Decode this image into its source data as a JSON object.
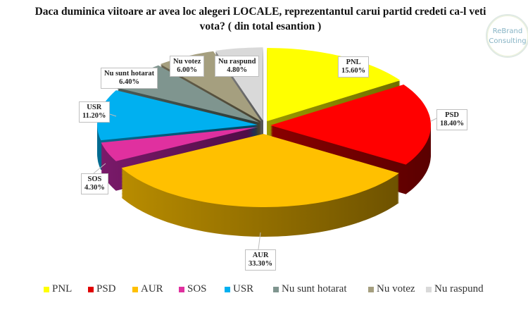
{
  "title": {
    "line1": "Daca duminica viitoare ar avea loc alegeri LOCALE, reprezentantul carui partid credeti ca-l veti",
    "line2": "vota? ( din total esantion )"
  },
  "logo": {
    "line1": "ReBrand",
    "line2": "Consulting"
  },
  "chart_data": {
    "type": "pie",
    "style": "3d-exploded",
    "title": "Daca duminica viitoare ar avea loc alegeri LOCALE, reprezentantul carui partid credeti ca-l veti vota? ( din total esantion )",
    "categories": [
      "PNL",
      "PSD",
      "AUR",
      "SOS",
      "USR",
      "Nu sunt hotarat",
      "Nu votez",
      "Nu raspund"
    ],
    "values": [
      15.6,
      18.4,
      33.3,
      4.3,
      11.2,
      6.4,
      6.0,
      4.8
    ],
    "value_labels": [
      "15.60%",
      "18.40%",
      "33.30%",
      "4.30%",
      "11.20%",
      "6.40%",
      "6.00%",
      "4.80%"
    ],
    "colors": [
      "#ffff00",
      "#ff0000",
      "#ffc000",
      "#e0309f",
      "#00b0f0",
      "#7f958f",
      "#a59f7f",
      "#d9d9d9"
    ],
    "side_colors_light": [
      "#9a9a00",
      "#8a0000",
      "#b88c00",
      "#7a1a6a",
      "#006a90",
      "#4a5a55",
      "#6a6450",
      "#8a8a8a"
    ],
    "side_colors_dark": [
      "#6f6f00",
      "#5a0000",
      "#6e5200",
      "#4e0c44",
      "#00455e",
      "#2e3a36",
      "#45402f",
      "#555555"
    ],
    "legend_position": "bottom",
    "unit": "%"
  },
  "labels": [
    {
      "name": "PNL",
      "value": "15.60%"
    },
    {
      "name": "PSD",
      "value": "18.40%"
    },
    {
      "name": "AUR",
      "value": "33.30%"
    },
    {
      "name": "SOS",
      "value": "4.30%"
    },
    {
      "name": "USR",
      "value": "11.20%"
    },
    {
      "name": "Nu sunt hotarat",
      "value": "6.40%"
    },
    {
      "name": "Nu votez",
      "value": "6.00%"
    },
    {
      "name": "Nu raspund",
      "value": "4.80%"
    }
  ],
  "legend": [
    {
      "label": "PNL",
      "color": "#ffff00"
    },
    {
      "label": "PSD",
      "color": "#e00000"
    },
    {
      "label": "AUR",
      "color": "#ffc000"
    },
    {
      "label": "SOS",
      "color": "#e0309f"
    },
    {
      "label": "USR",
      "color": "#00b0f0"
    },
    {
      "label": "Nu sunt hotarat",
      "color": "#7f958f"
    },
    {
      "label": "Nu votez",
      "color": "#a59f7f"
    },
    {
      "label": "Nu raspund",
      "color": "#d9d9d9"
    }
  ]
}
